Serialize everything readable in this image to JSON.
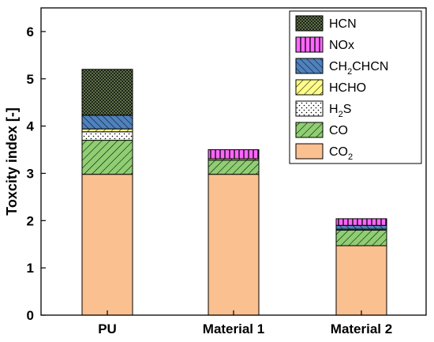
{
  "chart_data": {
    "type": "bar",
    "stacked": true,
    "title": "",
    "xlabel": "",
    "ylabel": "Toxcity index [-]",
    "ylim": [
      0,
      6.5
    ],
    "yticks": [
      "0",
      "1",
      "2",
      "3",
      "4",
      "5",
      "6"
    ],
    "categories": [
      "PU",
      "Material 1",
      "Material 2"
    ],
    "legend_position": "top-right",
    "grid": false,
    "series": [
      {
        "key": "co2",
        "name": "CO2",
        "name_main": "CO",
        "name_sub": "2",
        "color": "#fac090",
        "pattern": "none",
        "values": [
          2.98,
          2.98,
          1.47
        ]
      },
      {
        "key": "co",
        "name": "CO",
        "name_main": "CO",
        "name_sub": "",
        "color": "#8fce72",
        "pattern": "hatch-diag",
        "values": [
          0.72,
          0.3,
          0.33
        ]
      },
      {
        "key": "h2s",
        "name": "H2S",
        "name_main": "H",
        "name_sub": "2",
        "name_rest": "S",
        "color": "#ffffff",
        "pattern": "dots",
        "values": [
          0.18,
          0.0,
          0.0
        ]
      },
      {
        "key": "hcho",
        "name": "HCHO",
        "name_main": "HCHO",
        "name_sub": "",
        "color": "#ffff88",
        "pattern": "hatch-diag",
        "values": [
          0.06,
          0.03,
          0.02
        ]
      },
      {
        "key": "ch2chcn",
        "name": "CH2CHCN",
        "name_main": "CH",
        "name_sub": "2",
        "name_rest": "CHCN",
        "color": "#4f81bd",
        "pattern": "hatch-back",
        "values": [
          0.29,
          0.0,
          0.08
        ]
      },
      {
        "key": "nox",
        "name": "NOx",
        "name_main": "NOx",
        "name_sub": "",
        "color": "#ff66ff",
        "pattern": "vertical",
        "values": [
          0.0,
          0.19,
          0.14
        ]
      },
      {
        "key": "hcn",
        "name": "HCN",
        "name_main": "HCN",
        "name_sub": "",
        "color": "#5f6f4b",
        "pattern": "crosshatch",
        "values": [
          0.97,
          0.0,
          0.0
        ]
      }
    ]
  }
}
